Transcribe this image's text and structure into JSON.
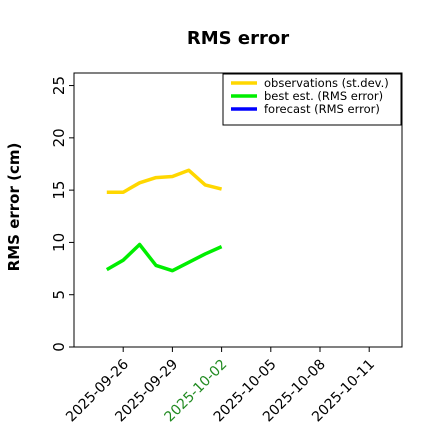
{
  "chart_data": {
    "type": "line",
    "title": "RMS error",
    "ylabel": "RMS error (cm)",
    "x": [
      "2025-09-25",
      "2025-09-26",
      "2025-09-27",
      "2025-09-28",
      "2025-09-29",
      "2025-09-30",
      "2025-10-01",
      "2025-10-02"
    ],
    "series": [
      {
        "name": "observations (st.dev.)",
        "color": "#ffd700",
        "values": [
          14.8,
          14.8,
          15.7,
          16.2,
          16.3,
          16.9,
          15.5,
          15.1
        ]
      },
      {
        "name": "best est. (RMS error)",
        "color": "#00ee00",
        "values": [
          7.4,
          8.3,
          9.8,
          7.8,
          7.3,
          8.1,
          8.9,
          9.6
        ]
      },
      {
        "name": "forecast (RMS error)",
        "color": "#0000ff",
        "values": [
          null,
          null,
          null,
          null,
          null,
          null,
          null,
          null
        ]
      }
    ],
    "xlim": [
      "2025-09-23",
      "2025-10-13"
    ],
    "xticks": [
      "2025-09-26",
      "2025-09-29",
      "2025-10-02",
      "2025-10-05",
      "2025-10-08",
      "2025-10-11"
    ],
    "xtick_colors": [
      "#000000",
      "#000000",
      "#228b22",
      "#000000",
      "#000000",
      "#000000"
    ],
    "ylim": [
      0,
      26.2
    ],
    "yticks": [
      0,
      5,
      10,
      15,
      20,
      25
    ],
    "legend": "upper right",
    "grid": false
  }
}
